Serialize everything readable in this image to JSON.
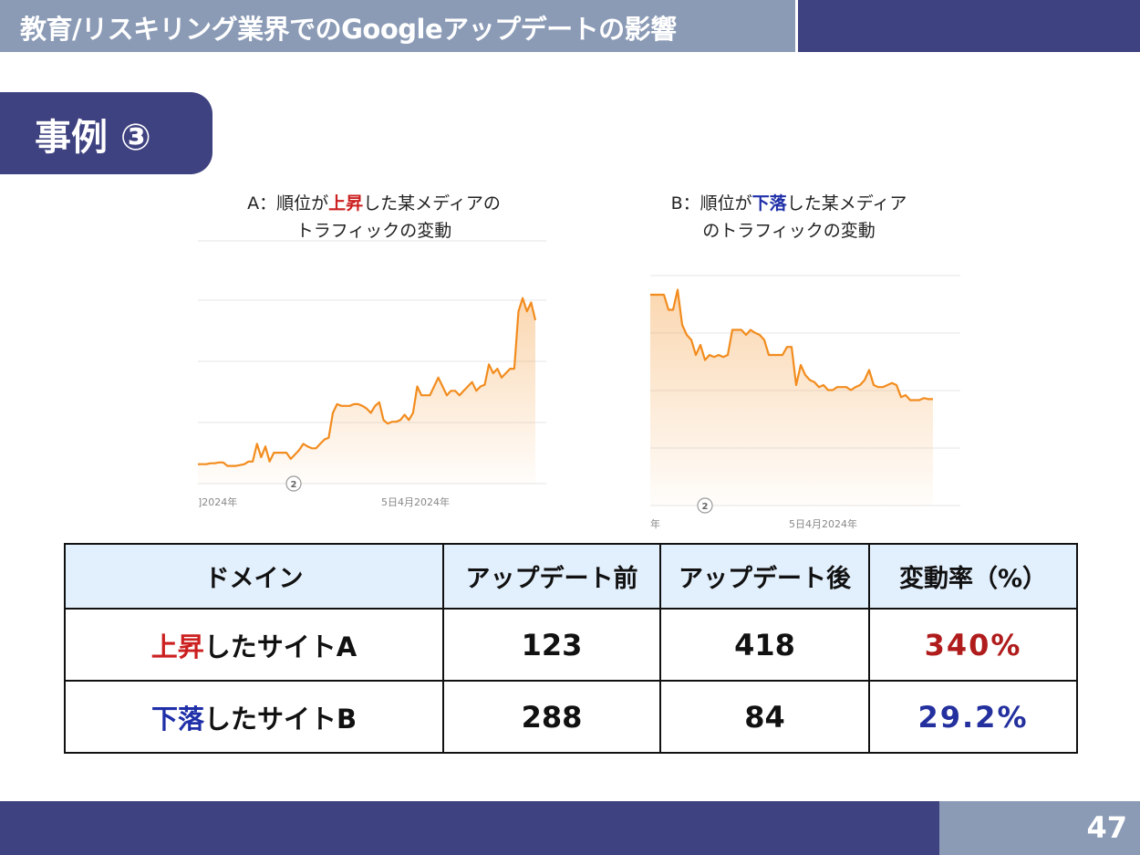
{
  "header": {
    "title": "教育/リスキリング業界でのGoogleアップデートの影響",
    "case_label": "事例 ③"
  },
  "charts": {
    "a_title_line1_prefix": "A：順位が",
    "a_title_line1_keyword": "上昇",
    "a_title_line1_suffix": "した某メディアの",
    "a_title_line2": "トラフィックの変動",
    "b_title_line1_prefix": "B：順位が",
    "b_title_line1_keyword": "下落",
    "b_title_line1_suffix": "した某メディア",
    "b_title_line2": "のトラフィックの変動"
  },
  "chart_data": [
    {
      "type": "area",
      "title": "A：順位が上昇した某メディアのトラフィックの変動",
      "x_tick_labels": [
        "]2024年",
        "5日4月2024年"
      ],
      "annotation": "2",
      "grid": true,
      "color": "#f28c1e",
      "y": [
        22,
        22,
        22,
        23,
        23,
        24,
        24,
        20,
        20,
        20,
        21,
        22,
        25,
        25,
        45,
        30,
        42,
        25,
        35,
        35,
        35,
        35,
        28,
        33,
        38,
        45,
        42,
        40,
        40,
        45,
        50,
        52,
        80,
        90,
        88,
        88,
        88,
        90,
        90,
        88,
        85,
        80,
        88,
        92,
        72,
        68,
        70,
        70,
        72,
        78,
        72,
        80,
        110,
        100,
        100,
        100,
        110,
        120,
        110,
        100,
        105,
        105,
        100,
        105,
        110,
        115,
        105,
        110,
        112,
        135,
        125,
        130,
        120,
        125,
        130,
        130,
        195,
        210,
        195,
        205,
        185
      ]
    },
    {
      "type": "area",
      "title": "B：順位が下落した某メディアのトラフィックの変動",
      "x_tick_labels": [
        "年",
        "5日4月2024年"
      ],
      "annotation": "2",
      "grid": true,
      "color": "#f28c1e",
      "y": [
        210,
        210,
        210,
        210,
        195,
        195,
        215,
        180,
        170,
        165,
        150,
        160,
        145,
        150,
        148,
        150,
        148,
        150,
        175,
        175,
        175,
        170,
        175,
        172,
        170,
        165,
        150,
        150,
        150,
        150,
        158,
        158,
        120,
        140,
        130,
        125,
        123,
        118,
        120,
        115,
        115,
        118,
        118,
        118,
        115,
        118,
        120,
        125,
        135,
        120,
        118,
        118,
        120,
        122,
        120,
        108,
        110,
        105,
        105,
        105,
        107,
        106,
        106
      ]
    }
  ],
  "table": {
    "headers": [
      "ドメイン",
      "アップデート前",
      "アップデート後",
      "変動率（%）"
    ],
    "rows": [
      {
        "domain_keyword": "上昇",
        "domain_suffix": "したサイトA",
        "before": "123",
        "after": "418",
        "rate": "340%",
        "rate_color": "#b01c1c"
      },
      {
        "domain_keyword": "下落",
        "domain_suffix": "したサイトB",
        "before": "288",
        "after": "84",
        "rate": "29.2%",
        "rate_color": "#23309e"
      }
    ]
  },
  "footer": {
    "page_number": "47"
  },
  "colors": {
    "navy": "#3f4280",
    "slate": "#8b9bb6",
    "table_header_bg": "#e2effc",
    "up_red": "#cc1f1f",
    "down_blue": "#1f2fa8",
    "line_orange": "#f28c1e"
  }
}
